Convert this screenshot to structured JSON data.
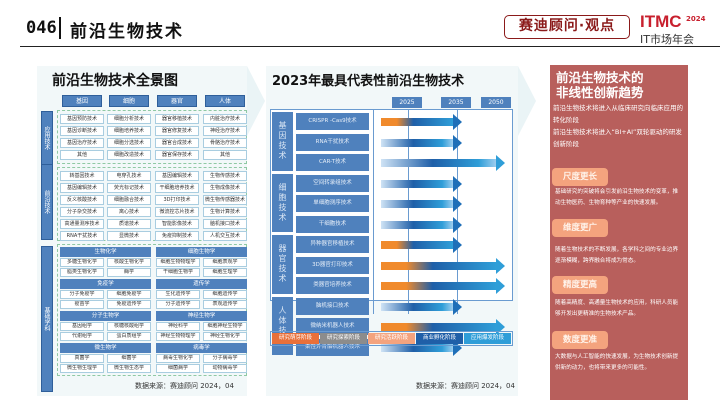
{
  "header": {
    "page_number": "046",
    "title": "前沿生物技术",
    "brand_stamp": "赛迪顾问·观点",
    "logo_text": "ITMC",
    "logo_year": "2024",
    "logo_subtitle": "IT市场年会"
  },
  "panel1": {
    "title": "前沿生物技术全景图",
    "categories": [
      "基因",
      "细胞",
      "器官",
      "人体"
    ],
    "side_labels": [
      "应用技术",
      "前沿技术",
      "基础学科"
    ],
    "applied_tech": [
      [
        "基因预防技术",
        "细胞分析技术",
        "器官移植技术",
        "内脏治疗技术"
      ],
      [
        "基因诊断技术",
        "细胞培养技术",
        "器官修复技术",
        "神经治疗技术"
      ],
      [
        "基因治疗技术",
        "细胞分选技术",
        "器官合成技术",
        "骨骼治疗技术"
      ],
      [
        "其他",
        "细胞改造技术",
        "器官保存技术",
        "其他"
      ]
    ],
    "frontier_tech": [
      [
        "转基因技术",
        "电穿孔技术",
        "基因编辑技术",
        "生物传感技术"
      ],
      [
        "基因编辑技术",
        "荧光标记技术",
        "干细胞培养技术",
        "生物成像技术"
      ],
      [
        "反义核酸技术",
        "细胞融合技术",
        "3D打印技术",
        "微生物传感器技术"
      ],
      [
        "分子杂交技术",
        "离心技术",
        "微流控芯片技术",
        "生物计算技术"
      ],
      [
        "高通量测序技术",
        "质谱技术",
        "智能影像技术",
        "脑机接口技术"
      ],
      [
        "RNA干扰技术",
        "显微技术",
        "免疫抑制技术",
        "人机交互技术"
      ]
    ],
    "basic_disciplines": [
      {
        "name": "生物化学",
        "items": [
          "多糖生物化学",
          "核酸生物化学",
          "脂类生物化学",
          "酶学"
        ]
      },
      {
        "name": "细胞生物学",
        "items": [
          "细胞生物物理学",
          "细胞表观学",
          "干细胞生物学",
          "细胞生理学"
        ]
      },
      {
        "name": "免疫学",
        "items": [
          "分子免疫学",
          "细胞免疫学",
          "疫苗学",
          "免疫遗传学"
        ]
      },
      {
        "name": "遗传学",
        "items": [
          "生化遗传学",
          "细胞遗传学",
          "分子遗传学",
          "表观遗传学"
        ]
      },
      {
        "name": "分子生物学",
        "items": [
          "基因组学",
          "核糖核酸组学",
          "代谢组学",
          "蛋白质组学"
        ]
      },
      {
        "name": "神经生物学",
        "items": [
          "神经科学",
          "细胞神经生物学",
          "神经生物物理学",
          "神经生物化学"
        ]
      },
      {
        "name": "微生物学",
        "items": [
          "真菌学",
          "细菌学",
          "微生物生理学",
          "微生物生态学"
        ]
      },
      {
        "name": "病毒学",
        "items": [
          "病毒生物化学",
          "分子病毒学",
          "细菌病学",
          "动物病毒学"
        ]
      }
    ],
    "source": "数据来源：赛迪顾问  2024，04"
  },
  "panel2": {
    "title": "2023年最具代表性前沿生物技术",
    "years": [
      "2025",
      "2035",
      "2050"
    ],
    "groups": [
      {
        "name": "基因技术",
        "techs": [
          {
            "name": "CRISPR -Cas9技术",
            "end": "2035",
            "orange": true
          },
          {
            "name": "RNA干扰技术",
            "end": "2035",
            "orange": false
          },
          {
            "name": "CAR-T技术",
            "end": "2050",
            "orange": false
          }
        ]
      },
      {
        "name": "细胞技术",
        "techs": [
          {
            "name": "空间转录组技术",
            "end": "2035",
            "orange": false
          },
          {
            "name": "单细胞测序技术",
            "end": "2035",
            "orange": false
          },
          {
            "name": "干细胞技术",
            "end": "2035",
            "orange": false
          }
        ]
      },
      {
        "name": "器官技术",
        "techs": [
          {
            "name": "异种器官移植技术",
            "end": "2035",
            "orange": true
          },
          {
            "name": "3D器官打印技术",
            "end": "2050",
            "orange": true
          },
          {
            "name": "类器官培养技术",
            "end": "2050",
            "orange": true
          }
        ]
      },
      {
        "name": "人体技术",
        "techs": [
          {
            "name": "脑机接口技术",
            "end": "2035",
            "orange": false
          },
          {
            "name": "微纳米机器人技术",
            "end": "2050",
            "orange": true
          },
          {
            "name": "柔性外骨骼机器人技术",
            "end": "2035",
            "orange": false
          }
        ]
      }
    ],
    "legend": [
      {
        "label": "研究萌芽阶段",
        "color": "#e8703a"
      },
      {
        "label": "研究探索阶段",
        "color": "#8c8c8c"
      },
      {
        "label": "研究活跃阶段",
        "color": "#f4a37e"
      },
      {
        "label": "商业孵化阶段",
        "color": "#1f5fa8"
      },
      {
        "label": "应用爆发阶段",
        "color": "#2f9ed8"
      }
    ],
    "source": "数据来源：赛迪顾问  2024，04"
  },
  "panel3": {
    "title_line1": "前沿生物技术的",
    "title_line2": "非线性创新趋势",
    "intro": "前沿生物技术将进入从临床研究向临床应用的转化阶段\n前沿生物技术将进入“BI+AI”双轮驱动的研发创新阶段",
    "intro_line1": "前沿生物技术将进入从临床研究向临床应用的转化阶段",
    "intro_line2": "前沿生物技术将进入“BI+AI”双轮驱动的研发创新阶段",
    "trends": [
      {
        "label": "尺度更长",
        "text": "基础研究的突破将会引发前沿生物技术的变革，推动生物医药、生物育种等产业的快速发展。"
      },
      {
        "label": "维度更广",
        "text": "随着生物技术的不断发展，各学科之间的专业边界逐渐模糊，跨界融合将成为常态。"
      },
      {
        "label": "精度更高",
        "text": "随着高精度、高通量生物技术的应用，科研人员能够开发出更精准的生物技术产品。"
      },
      {
        "label": "数度更准",
        "text": "大数据与人工智能的快速发展，为生物技术创新提供新的动力，也将带来更多的可能性。"
      }
    ]
  },
  "colors": {
    "accent_blue": "#4f81bd",
    "panel_red": "#b85f5c",
    "pill_orange": "#f4a37e",
    "brand_red": "#c8202e"
  }
}
